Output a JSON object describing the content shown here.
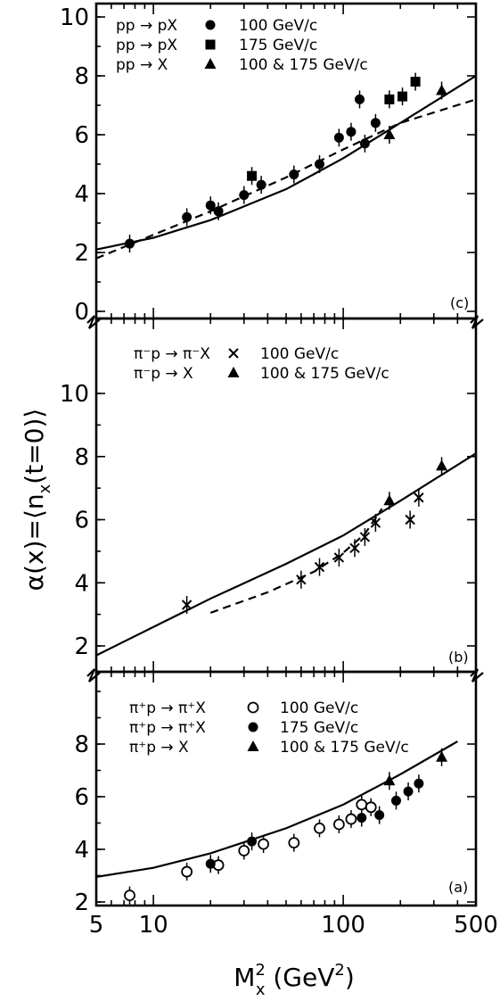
{
  "chart_data": [
    {
      "type": "scatter",
      "panel_label": "(c)",
      "xlabel": "M²ₓ (GeV²)",
      "ylabel": "α(x) = ⟨nₓ(t=0)⟩",
      "xscale": "log",
      "xlim": [
        5,
        500
      ],
      "ylim": [
        0,
        11
      ],
      "y_ticks": [
        "0",
        "2",
        "4",
        "6",
        "8",
        "10"
      ],
      "legend": [
        {
          "reaction": "pp → pX",
          "marker": "filled-circle",
          "energy": "100 GeV/c"
        },
        {
          "reaction": "pp → pX",
          "marker": "filled-square",
          "energy": "175 GeV/c"
        },
        {
          "reaction": "pp → X",
          "marker": "filled-triangle",
          "energy": "100 & 175 GeV/c"
        }
      ],
      "series": [
        {
          "name": "pp → pX 100 GeV/c",
          "marker": "filled-circle",
          "points": [
            [
              7.5,
              2.3
            ],
            [
              15,
              3.2
            ],
            [
              20,
              3.6
            ],
            [
              22,
              3.4
            ],
            [
              30,
              3.95
            ],
            [
              37,
              4.3
            ],
            [
              55,
              4.65
            ],
            [
              75,
              5.0
            ],
            [
              95,
              5.9
            ],
            [
              110,
              6.1
            ],
            [
              122,
              7.2
            ],
            [
              130,
              5.7
            ],
            [
              148,
              6.4
            ]
          ]
        },
        {
          "name": "pp → pX 175 GeV/c",
          "marker": "filled-square",
          "points": [
            [
              33,
              4.6
            ],
            [
              175,
              7.2
            ],
            [
              205,
              7.3
            ],
            [
              240,
              7.8
            ]
          ]
        },
        {
          "name": "pp → X 100 & 175 GeV/c",
          "marker": "filled-triangle",
          "points": [
            [
              175,
              6.0
            ],
            [
              330,
              7.5
            ]
          ]
        }
      ],
      "curves": [
        {
          "style": "solid",
          "points": [
            [
              5,
              2.1
            ],
            [
              10,
              2.5
            ],
            [
              20,
              3.1
            ],
            [
              50,
              4.15
            ],
            [
              100,
              5.2
            ],
            [
              200,
              6.4
            ],
            [
              500,
              8.0
            ]
          ]
        },
        {
          "style": "dashed",
          "points": [
            [
              5,
              1.8
            ],
            [
              10,
              2.6
            ],
            [
              20,
              3.4
            ],
            [
              50,
              4.55
            ],
            [
              100,
              5.5
            ],
            [
              200,
              6.4
            ],
            [
              500,
              7.2
            ]
          ]
        }
      ]
    },
    {
      "type": "scatter",
      "panel_label": "(b)",
      "xscale": "log",
      "xlim": [
        5,
        500
      ],
      "ylim": [
        1.3,
        11
      ],
      "y_ticks": [
        "2",
        "4",
        "6",
        "8",
        "10"
      ],
      "legend": [
        {
          "reaction": "π⁻p → π⁻X",
          "marker": "cross",
          "energy": "100 GeV/c"
        },
        {
          "reaction": "π⁻p → X",
          "marker": "filled-triangle",
          "energy": "100 & 175 GeV/c"
        }
      ],
      "series": [
        {
          "name": "π⁻p → π⁻X 100 GeV/c",
          "marker": "cross",
          "points": [
            [
              15,
              3.3
            ],
            [
              60,
              4.1
            ],
            [
              75,
              4.5
            ],
            [
              95,
              4.8
            ],
            [
              115,
              5.1
            ],
            [
              130,
              5.45
            ],
            [
              148,
              5.9
            ],
            [
              225,
              6.0
            ],
            [
              250,
              6.7
            ]
          ]
        },
        {
          "name": "π⁻p → X 100 & 175 GeV/c",
          "marker": "filled-triangle",
          "points": [
            [
              175,
              6.6
            ],
            [
              330,
              7.7
            ]
          ]
        }
      ],
      "curves": [
        {
          "style": "solid",
          "points": [
            [
              5,
              1.7
            ],
            [
              10,
              2.6
            ],
            [
              20,
              3.5
            ],
            [
              50,
              4.6
            ],
            [
              100,
              5.5
            ],
            [
              200,
              6.6
            ],
            [
              500,
              8.1
            ]
          ]
        },
        {
          "style": "dashed",
          "points": [
            [
              20,
              3.05
            ],
            [
              40,
              3.7
            ],
            [
              70,
              4.35
            ],
            [
              100,
              4.95
            ],
            [
              130,
              5.55
            ],
            [
              160,
              6.35
            ]
          ]
        }
      ]
    },
    {
      "type": "scatter",
      "panel_label": "(a)",
      "xscale": "log",
      "xlim": [
        5,
        500
      ],
      "ylim": [
        1.8,
        10.2
      ],
      "x_ticks": [
        "5",
        "10",
        "100",
        "500"
      ],
      "y_ticks": [
        "2",
        "4",
        "6",
        "8"
      ],
      "legend": [
        {
          "reaction": "π⁺p → π⁺X",
          "marker": "open-circle",
          "energy": "100 GeV/c"
        },
        {
          "reaction": "π⁺p → π⁺X",
          "marker": "filled-circle",
          "energy": "175 GeV/c"
        },
        {
          "reaction": "π⁺p → X",
          "marker": "filled-triangle",
          "energy": "100 & 175 GeV/c"
        }
      ],
      "series": [
        {
          "name": "π⁺p → π⁺X 100 GeV/c",
          "marker": "open-circle",
          "points": [
            [
              7.5,
              2.25
            ],
            [
              15,
              3.15
            ],
            [
              22,
              3.4
            ],
            [
              30,
              3.95
            ],
            [
              38,
              4.2
            ],
            [
              55,
              4.25
            ],
            [
              75,
              4.8
            ],
            [
              95,
              4.95
            ],
            [
              110,
              5.15
            ],
            [
              125,
              5.7
            ],
            [
              140,
              5.6
            ]
          ]
        },
        {
          "name": "π⁺p → π⁺X 175 GeV/c",
          "marker": "filled-circle",
          "points": [
            [
              20,
              3.45
            ],
            [
              33,
              4.3
            ],
            [
              125,
              5.2
            ],
            [
              155,
              5.3
            ],
            [
              190,
              5.85
            ],
            [
              220,
              6.2
            ],
            [
              250,
              6.5
            ]
          ]
        },
        {
          "name": "π⁺p → X 100 & 175 GeV/c",
          "marker": "filled-triangle",
          "points": [
            [
              175,
              6.6
            ],
            [
              330,
              7.5
            ]
          ]
        }
      ],
      "curves": [
        {
          "style": "solid",
          "points": [
            [
              5,
              2.95
            ],
            [
              10,
              3.3
            ],
            [
              20,
              3.85
            ],
            [
              50,
              4.8
            ],
            [
              100,
              5.7
            ],
            [
              200,
              6.85
            ],
            [
              400,
              8.1
            ]
          ]
        }
      ]
    }
  ]
}
